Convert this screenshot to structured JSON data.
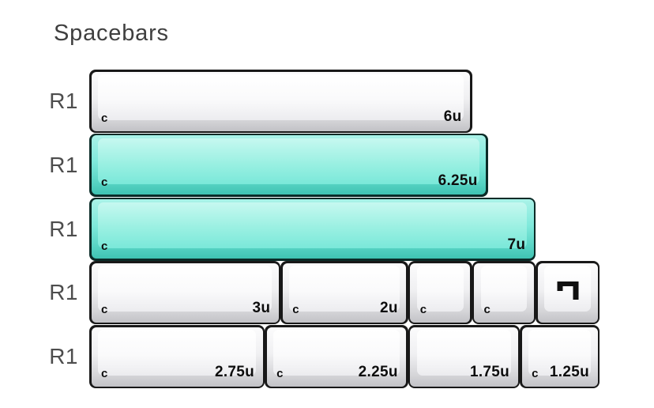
{
  "title": "Spacebars",
  "colors": {
    "background": "#ffffff",
    "teal_key": "#7ae8d9",
    "teal_border": "#0a2b27",
    "white_key": "#f0f0f2",
    "key_border": "#181818",
    "row_label": "#4d4d4d",
    "legend": "#0d0d0d"
  },
  "rows": [
    {
      "label": "R1",
      "keys": [
        {
          "size": "6u",
          "units": 6,
          "color": "white",
          "left": "c",
          "right": "6u"
        }
      ]
    },
    {
      "label": "R1",
      "keys": [
        {
          "size": "6.25u",
          "units": 6.25,
          "color": "teal",
          "left": "c",
          "right": "6.25u"
        }
      ]
    },
    {
      "label": "R1",
      "keys": [
        {
          "size": "7u",
          "units": 7,
          "color": "teal",
          "left": "c",
          "right": "7u"
        }
      ]
    },
    {
      "label": "R1",
      "keys": [
        {
          "size": "3u",
          "units": 3,
          "color": "white",
          "left": "c",
          "right": "3u"
        },
        {
          "size": "2u",
          "units": 2,
          "color": "white",
          "left": "c",
          "right": "2u"
        },
        {
          "size": "1u",
          "units": 1,
          "color": "white",
          "left": "c",
          "right": ""
        },
        {
          "size": "1u",
          "units": 1,
          "color": "white",
          "left": "c",
          "right": ""
        },
        {
          "size": "1u",
          "units": 1,
          "color": "white",
          "left": "",
          "right": "",
          "icon": "novelty-icon"
        }
      ]
    },
    {
      "label": "R1",
      "keys": [
        {
          "size": "2.75u",
          "units": 2.75,
          "color": "white",
          "left": "c",
          "right": "2.75u"
        },
        {
          "size": "2.25u",
          "units": 2.25,
          "color": "white",
          "left": "c",
          "right": "2.25u"
        },
        {
          "size": "1.75u",
          "units": 1.75,
          "color": "white",
          "left": "",
          "right": "1.75u"
        },
        {
          "size": "1.25u",
          "units": 1.25,
          "color": "white",
          "left": "c",
          "right": "1.25u"
        }
      ]
    }
  ]
}
